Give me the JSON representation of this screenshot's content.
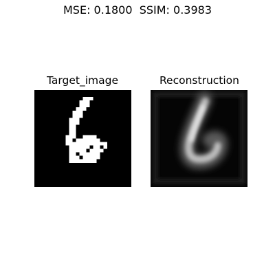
{
  "figure": {
    "title": "MSE: 0.1800  SSIM: 0.3983"
  },
  "panels": [
    {
      "title": "Target_image",
      "description_name": "target-image"
    },
    {
      "title": "Reconstruction",
      "description_name": "reconstruction-image"
    }
  ],
  "colors": {
    "background": "#ffffff",
    "image_background": "#000000",
    "digit_stroke": "#ffffff",
    "text": "#000000"
  }
}
